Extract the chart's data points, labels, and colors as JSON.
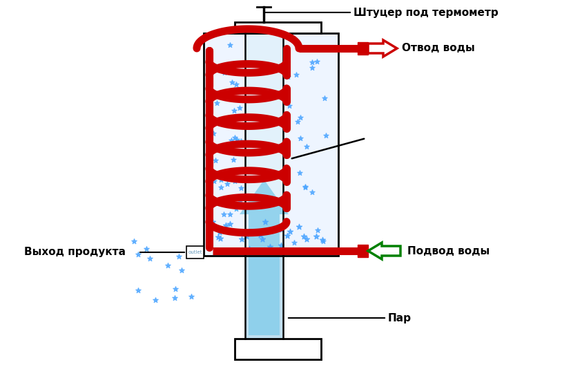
{
  "bg_color": "#ffffff",
  "coil_color": "#cc0000",
  "water_fill_color": "#eef5ff",
  "droplet_color": "#4da6ff",
  "steam_color": "#87ceeb",
  "outlet_arrow_color": "#cc0000",
  "inlet_arrow_color": "#008000",
  "label_thermometer": "Штуцер под термометр",
  "label_outlet_water": "Отвод воды",
  "label_inlet_water": "Подвод воды",
  "label_product": "Выход продукта",
  "label_steam": "Пар",
  "figsize": [
    8.28,
    5.57
  ],
  "dpi": 100
}
